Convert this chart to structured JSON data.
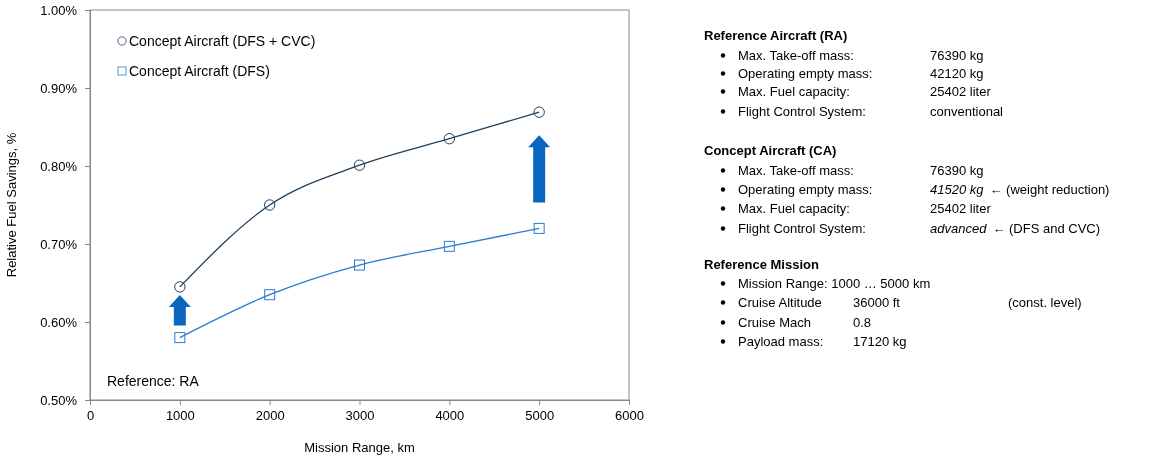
{
  "chart_data": [
    {
      "type": "line",
      "xlabel": "Mission Range, km",
      "ylabel": "Relative Fuel Savings, %",
      "x": [
        1000,
        2000,
        3000,
        4000,
        5000
      ],
      "series": [
        {
          "name": "Concept Aircraft (DFS + CVC)",
          "color": "#1f3f5f",
          "marker": "circle",
          "values": [
            0.645,
            0.75,
            0.801,
            0.835,
            0.869
          ]
        },
        {
          "name": "Concept Aircraft (DFS)",
          "color": "#2a7bd0",
          "marker": "square",
          "values": [
            0.58,
            0.635,
            0.673,
            0.697,
            0.72
          ]
        }
      ],
      "xlim": [
        0,
        6000
      ],
      "xticks": [
        0,
        1000,
        2000,
        3000,
        4000,
        5000,
        6000
      ],
      "ylim": [
        0.5,
        1.0
      ],
      "yticks": [
        {
          "value": 0.5,
          "label": "0.50%"
        },
        {
          "value": 0.6,
          "label": "0.60%"
        },
        {
          "value": 0.7,
          "label": "0.70%"
        },
        {
          "value": 0.8,
          "label": "0.80%"
        },
        {
          "value": 0.9,
          "label": "0.90%"
        },
        {
          "value": 1.0,
          "label": "1.00%"
        }
      ],
      "grid": false,
      "legend": "top left",
      "annotations": [
        "Reference: RA"
      ]
    },
    {
      "type": "other",
      "annotations": [
        "Reference Aircraft (RA)",
        "Max. Take-off mass:",
        "76390 kg",
        "Operating empty mass:",
        "42120 kg",
        "Max. Fuel capacity:",
        "25402 liter",
        "Flight Control System:",
        "conventional",
        "Concept Aircraft (CA)",
        "Max. Take-off mass:",
        "76390 kg",
        "Operating empty mass:",
        "41520 kg",
        "← (weight reduction)",
        "Max. Fuel capacity:",
        "25402 liter",
        "Flight Control System:",
        "advanced",
        "← (DFS and CVC)",
        "Reference Mission",
        "Mission Range: 1000 … 5000 km",
        "Cruise Altitude",
        "36000 ft",
        "(const. level)",
        "Cruise Mach",
        "0.8",
        "Payload mass:",
        "17120 kg"
      ]
    }
  ]
}
